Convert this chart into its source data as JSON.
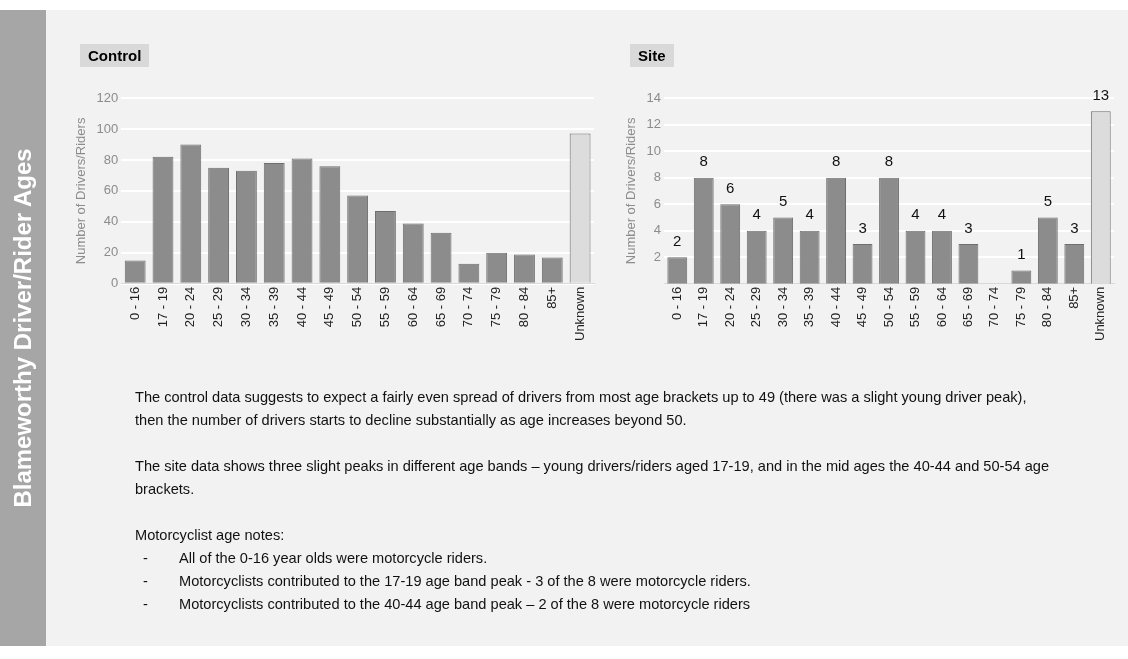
{
  "chart_data": [
    {
      "type": "bar",
      "title": "Control",
      "ylabel": "Number of Drivers/Riders",
      "categories": [
        "0 - 16",
        "17 - 19",
        "20 - 24",
        "25 - 29",
        "30 - 34",
        "35 - 39",
        "40 - 44",
        "45 - 49",
        "50 - 54",
        "55 - 59",
        "60 - 64",
        "65 - 69",
        "70 - 74",
        "75 - 79",
        "80 - 84",
        "85+",
        "Unknown"
      ],
      "values": [
        15,
        82,
        90,
        75,
        73,
        78,
        81,
        76,
        57,
        47,
        39,
        33,
        13,
        20,
        19,
        17,
        97
      ],
      "colors": [
        "#8c8c8c",
        "#8c8c8c",
        "#8c8c8c",
        "#8c8c8c",
        "#8c8c8c",
        "#8c8c8c",
        "#8c8c8c",
        "#8c8c8c",
        "#8c8c8c",
        "#8c8c8c",
        "#8c8c8c",
        "#8c8c8c",
        "#8c8c8c",
        "#8c8c8c",
        "#8c8c8c",
        "#8c8c8c",
        "#dcdcdc"
      ],
      "ylim": [
        0,
        120
      ],
      "yticks": [
        0,
        20,
        40,
        60,
        80,
        100,
        120
      ],
      "grid": "y",
      "legend": false
    },
    {
      "type": "bar",
      "title": "Site",
      "ylabel": "Number of Drivers/Riders",
      "categories": [
        "0 - 16",
        "17 - 19",
        "20 - 24",
        "25 - 29",
        "30 - 34",
        "35 - 39",
        "40 - 44",
        "45 - 49",
        "50 - 54",
        "55 - 59",
        "60 - 64",
        "65 - 69",
        "70 - 74",
        "75 - 79",
        "80 - 84",
        "85+",
        "Unknown"
      ],
      "values": [
        2,
        8,
        6,
        4,
        5,
        4,
        8,
        3,
        8,
        4,
        4,
        3,
        0,
        1,
        5,
        3,
        13
      ],
      "value_labels": [
        "2",
        "8",
        "6",
        "4",
        "5",
        "4",
        "8",
        "3",
        "8",
        "4",
        "4",
        "3",
        null,
        "1",
        "5",
        "3",
        "13"
      ],
      "colors": [
        "#8c8c8c",
        "#8c8c8c",
        "#8c8c8c",
        "#8c8c8c",
        "#8c8c8c",
        "#8c8c8c",
        "#8c8c8c",
        "#8c8c8c",
        "#8c8c8c",
        "#8c8c8c",
        "#8c8c8c",
        "#8c8c8c",
        "#8c8c8c",
        "#8c8c8c",
        "#8c8c8c",
        "#8c8c8c",
        "#dcdcdc"
      ],
      "ylim": [
        0,
        14
      ],
      "yticks": [
        2,
        4,
        6,
        8,
        10,
        12,
        14
      ],
      "grid": "y",
      "legend": false
    },
    {
      "type": "other",
      "title": "Blameworthy Driver/Rider Ages",
      "annotations": [
        "The control data suggests to expect a fairly even spread of drivers from most age brackets up to 49 (there was a slight young driver peak), then the number of drivers starts to decline substantially as age increases beyond 50.",
        "The site data shows three slight peaks in different age bands – young drivers/riders aged 17-19, and in the mid ages the 40-44 and 50-54 age brackets.",
        "Motorcyclist age notes:",
        "-\tAll of the 0-16 year olds were motorcycle riders.",
        "-\tMotorcyclists contributed to the 17-19 age band peak - 3 of the 8 were motorcycle riders.",
        "-\tMotorcyclists contributed to the 40-44 age band peak – 2 of the 8 were motorcycle riders"
      ]
    }
  ]
}
